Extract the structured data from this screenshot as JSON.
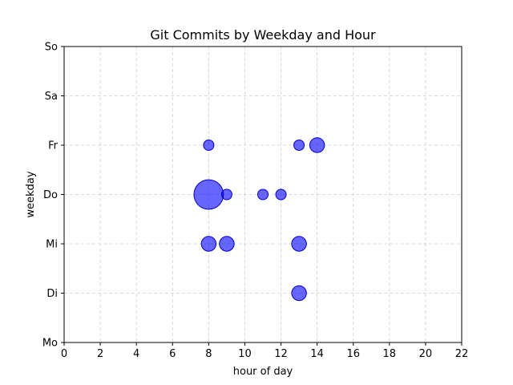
{
  "chart_data": {
    "type": "scatter",
    "title": "Git Commits by Weekday and Hour",
    "xlabel": "hour of day",
    "ylabel": "weekday",
    "xlim": [
      0,
      22
    ],
    "ylim": [
      0,
      6
    ],
    "x_ticks": [
      0,
      2,
      4,
      6,
      8,
      10,
      12,
      14,
      16,
      18,
      20,
      22
    ],
    "y_ticks": [
      {
        "value": 0,
        "label": "Mo"
      },
      {
        "value": 1,
        "label": "Di"
      },
      {
        "value": 2,
        "label": "Mi"
      },
      {
        "value": 3,
        "label": "Do"
      },
      {
        "value": 4,
        "label": "Fr"
      },
      {
        "value": 5,
        "label": "Sa"
      },
      {
        "value": 6,
        "label": "So"
      }
    ],
    "grid": true,
    "marker_color": "#0000ff",
    "marker_edge_color": "#0000cc",
    "marker_alpha": 0.6,
    "series": [
      {
        "points": [
          {
            "x": 8,
            "y": 4,
            "commits": 1
          },
          {
            "x": 13,
            "y": 4,
            "commits": 1
          },
          {
            "x": 14,
            "y": 4,
            "commits": 2
          },
          {
            "x": 8,
            "y": 3,
            "commits": 8
          },
          {
            "x": 9,
            "y": 3,
            "commits": 1
          },
          {
            "x": 11,
            "y": 3,
            "commits": 1
          },
          {
            "x": 12,
            "y": 3,
            "commits": 1
          },
          {
            "x": 8,
            "y": 2,
            "commits": 2
          },
          {
            "x": 9,
            "y": 2,
            "commits": 2
          },
          {
            "x": 13,
            "y": 2,
            "commits": 2
          },
          {
            "x": 13,
            "y": 1,
            "commits": 2
          }
        ]
      }
    ]
  }
}
